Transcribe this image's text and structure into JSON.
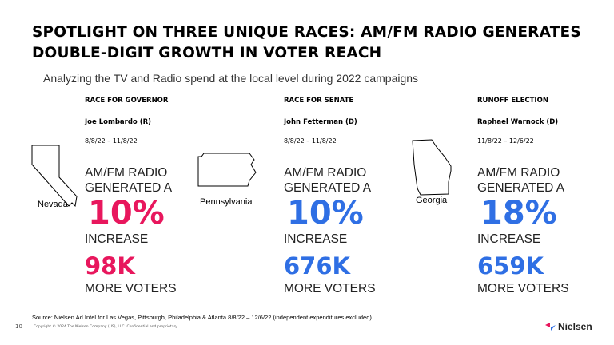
{
  "header": {
    "title_lines": [
      "SPOTLIGHT ON THREE UNIQUE RACES: AM/FM RADIO GENERATES",
      "DOUBLE-DIGIT GROWTH IN VOTER REACH"
    ],
    "subtitle": "Analyzing the TV and Radio spend at the local level during 2022 campaigns"
  },
  "races": [
    {
      "race": "RACE FOR GOVERNOR",
      "candidate": "Joe Lombardo (R)",
      "dates": "8/8/22 – 11/8/22",
      "state": "Nevada",
      "lines": [
        "AM/FM RADIO",
        "GENERATED A"
      ],
      "percent": "10%",
      "increase": "INCREASE",
      "voters": "98K",
      "voters_label": "MORE VOTERS",
      "color": "#e8175d"
    },
    {
      "race": "RACE FOR SENATE",
      "candidate": "John Fetterman (D)",
      "dates": "8/8/22 – 11/8/22",
      "state": "Pennsylvania",
      "lines": [
        "AM/FM RADIO",
        "GENERATED A"
      ],
      "percent": "10%",
      "increase": "INCREASE",
      "voters": "676K",
      "voters_label": "MORE VOTERS",
      "color": "#2f6fe4"
    },
    {
      "race": "RUNOFF ELECTION",
      "candidate": "Raphael Warnock (D)",
      "dates": "11/8/22 – 12/6/22",
      "state": "Georgia",
      "lines": [
        "AM/FM RADIO",
        "GENERATED A"
      ],
      "percent": "18%",
      "increase": "INCREASE",
      "voters": "659K",
      "voters_label": "MORE VOTERS",
      "color": "#2f6fe4"
    }
  ],
  "footer": {
    "source": "Source: Nielsen Ad Intel for Las Vegas,  Pittsburgh, Philadelphia & Atlanta 8/8/22 – 12/6/22 (independent expenditures excluded)",
    "page_number": "10",
    "copyright": "Copyright © 2024 The Nielsen Company (US), LLC. Confidential and proprietary.",
    "logo": "Nielsen"
  }
}
